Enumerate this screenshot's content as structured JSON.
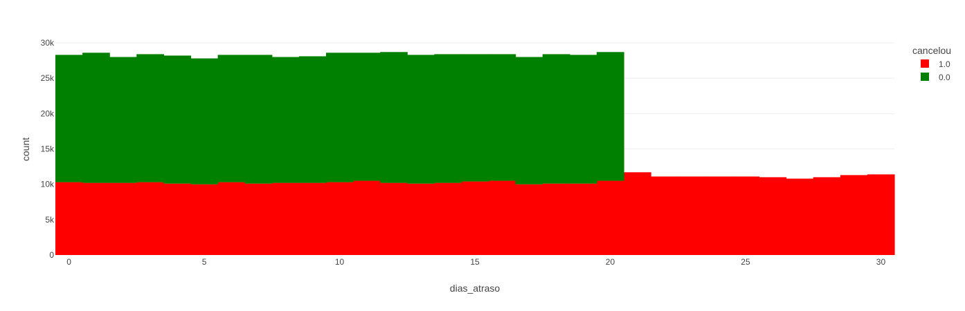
{
  "chart_data": {
    "type": "bar",
    "barmode": "stack",
    "xlabel": "dias_atraso",
    "ylabel": "count",
    "xlim": [
      -0.5,
      30.5
    ],
    "ylim": [
      0,
      30000
    ],
    "x_ticks": [
      0,
      5,
      10,
      15,
      20,
      25,
      30
    ],
    "y_ticks": [
      {
        "value": 0,
        "label": "0"
      },
      {
        "value": 5000,
        "label": "5k"
      },
      {
        "value": 10000,
        "label": "10k"
      },
      {
        "value": 15000,
        "label": "15k"
      },
      {
        "value": 20000,
        "label": "20k"
      },
      {
        "value": 25000,
        "label": "25k"
      },
      {
        "value": 30000,
        "label": "30k"
      }
    ],
    "grid": true,
    "legend": {
      "title": "cancelou",
      "position": "right",
      "entries": [
        {
          "label": "1.0",
          "color": "#ff0000"
        },
        {
          "label": "0.0",
          "color": "#008000"
        }
      ]
    },
    "x": [
      0,
      1,
      2,
      3,
      4,
      5,
      6,
      7,
      8,
      9,
      10,
      11,
      12,
      13,
      14,
      15,
      16,
      17,
      18,
      19,
      20,
      21,
      22,
      23,
      24,
      25,
      26,
      27,
      28,
      29,
      30
    ],
    "series": [
      {
        "name": "1.0",
        "color": "#ff0000",
        "values": [
          10300,
          10200,
          10200,
          10300,
          10100,
          10000,
          10300,
          10100,
          10200,
          10200,
          10300,
          10500,
          10200,
          10100,
          10200,
          10400,
          10500,
          10000,
          10100,
          10100,
          10500,
          11700,
          11100,
          11100,
          11100,
          11100,
          11000,
          10800,
          11000,
          11300,
          11400
        ]
      },
      {
        "name": "0.0",
        "color": "#008000",
        "values": [
          18000,
          18400,
          17800,
          18100,
          18100,
          17800,
          18000,
          18200,
          17800,
          17900,
          18300,
          18100,
          18500,
          18200,
          18200,
          18000,
          17900,
          18000,
          18300,
          18200,
          18200,
          0,
          0,
          0,
          0,
          0,
          0,
          0,
          0,
          0,
          0
        ]
      }
    ]
  }
}
